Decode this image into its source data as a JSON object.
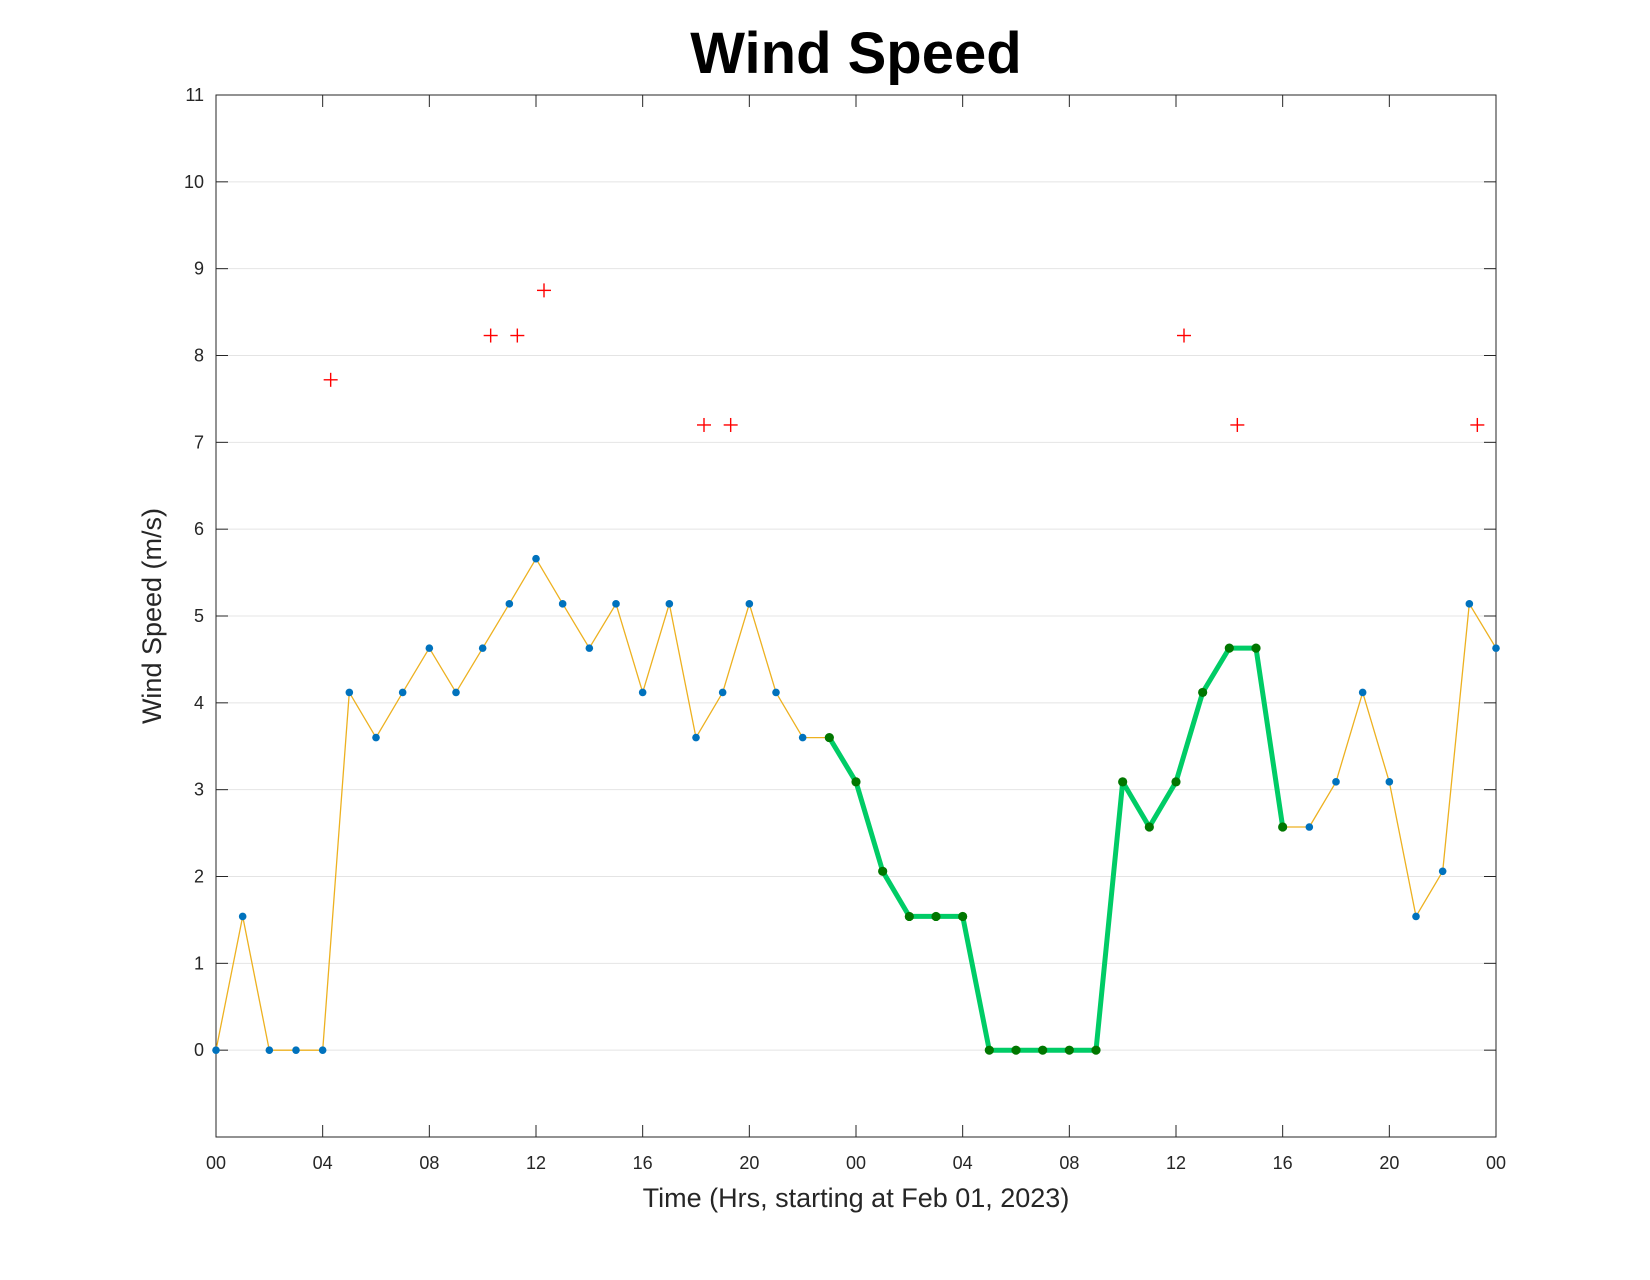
{
  "chart_data": {
    "type": "line",
    "title": "Wind Speed",
    "xlabel": "Time (Hrs, starting at Feb 01, 2023)",
    "ylabel": "Wind Speed (m/s)",
    "xlim": [
      0,
      48
    ],
    "ylim": [
      -1,
      11
    ],
    "x_ticks": [
      0,
      4,
      8,
      12,
      16,
      20,
      24,
      28,
      32,
      36,
      40,
      44,
      48
    ],
    "x_tick_labels": [
      "00",
      "04",
      "08",
      "12",
      "16",
      "20",
      "00",
      "04",
      "08",
      "12",
      "16",
      "20",
      "00"
    ],
    "y_ticks": [
      0,
      1,
      2,
      3,
      4,
      5,
      6,
      7,
      8,
      9,
      10,
      11
    ],
    "y_tick_labels": [
      "0",
      "1",
      "2",
      "3",
      "4",
      "5",
      "6",
      "7",
      "8",
      "9",
      "10",
      "11"
    ],
    "grid": true,
    "legend": false,
    "x": [
      0,
      1,
      2,
      3,
      4,
      5,
      6,
      7,
      8,
      9,
      10,
      11,
      12,
      13,
      14,
      15,
      16,
      17,
      18,
      19,
      20,
      21,
      22,
      23,
      24,
      25,
      26,
      27,
      28,
      29,
      30,
      31,
      32,
      33,
      34,
      35,
      36,
      37,
      38,
      39,
      40,
      41,
      42,
      43,
      44,
      45,
      46,
      47,
      48
    ],
    "series": [
      {
        "values": [
          0,
          1.54,
          0,
          0,
          0,
          4.12,
          3.6,
          4.12,
          4.63,
          4.12,
          4.63,
          5.14,
          5.66,
          5.14,
          4.63,
          5.14,
          4.12,
          5.14,
          3.6,
          4.12,
          5.14,
          4.12,
          3.6,
          3.6,
          3.09,
          2.06,
          1.54,
          1.54,
          1.54,
          0,
          0,
          0,
          0,
          0,
          3.09,
          2.57,
          3.09,
          4.12,
          4.63,
          4.63,
          2.57,
          2.57,
          3.09,
          4.12,
          3.09,
          1.54,
          2.06,
          5.14,
          4.63
        ],
        "color": "#EDB120",
        "marker_color": "#0072BD"
      },
      {
        "x_range": [
          23,
          40
        ],
        "color": "#00CC66",
        "marker_color": "#007700"
      },
      {
        "style": "plus-markers",
        "x": [
          4.3,
          10.3,
          11.3,
          12.3,
          18.3,
          19.3,
          36.3,
          38.3,
          47.3
        ],
        "values": [
          7.72,
          8.23,
          8.23,
          8.75,
          7.2,
          7.2,
          8.23,
          7.2,
          7.2
        ],
        "color": "#FF0000"
      }
    ]
  }
}
